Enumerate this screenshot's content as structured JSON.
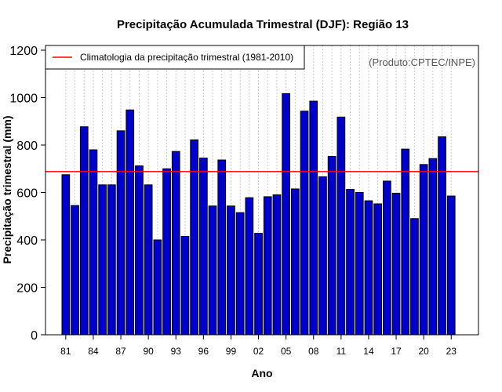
{
  "chart_data": {
    "type": "bar",
    "title": "Precipitação Acumulada Trimestral (DJF): Região 13",
    "xlabel": "Ano",
    "ylabel": "Precipitação trimestral (mm)",
    "ylim": [
      0,
      1200
    ],
    "yticks": [
      0,
      200,
      400,
      600,
      800,
      1000,
      1200
    ],
    "categories": [
      "1981",
      "1982",
      "1983",
      "1984",
      "1985",
      "1986",
      "1987",
      "1988",
      "1989",
      "1990",
      "1991",
      "1992",
      "1993",
      "1994",
      "1995",
      "1996",
      "1997",
      "1998",
      "1999",
      "2000",
      "2001",
      "2002",
      "2003",
      "2004",
      "2005",
      "2006",
      "2007",
      "2008",
      "2009",
      "2010",
      "2011",
      "2012",
      "2013",
      "2014",
      "2015",
      "2016",
      "2017",
      "2018",
      "2019",
      "2020",
      "2021",
      "2022",
      "2023"
    ],
    "values": [
      675,
      545,
      877,
      780,
      632,
      632,
      860,
      948,
      712,
      632,
      400,
      700,
      773,
      415,
      822,
      745,
      543,
      737,
      543,
      515,
      578,
      428,
      582,
      590,
      1017,
      615,
      943,
      985,
      666,
      752,
      918,
      613,
      600,
      565,
      552,
      648,
      597,
      783,
      490,
      718,
      743,
      835,
      585
    ],
    "xtick_labels": [
      "81",
      "84",
      "87",
      "90",
      "93",
      "96",
      "99",
      "02",
      "05",
      "08",
      "11",
      "14",
      "17",
      "20",
      "23"
    ],
    "xtick_categories": [
      "1981",
      "1984",
      "1987",
      "1990",
      "1993",
      "1996",
      "1999",
      "2002",
      "2005",
      "2008",
      "2011",
      "2014",
      "2017",
      "2020",
      "2023"
    ],
    "bar_color": "#0000cd",
    "reference_line": {
      "label": "Climatologia da precipitação trimestral (1981-2010)",
      "value": 688,
      "color": "#ff0000"
    },
    "legend_position": "top-left",
    "source_note": "(Produto:CPTEC/INPE)",
    "grid": "vertical-dotted"
  }
}
